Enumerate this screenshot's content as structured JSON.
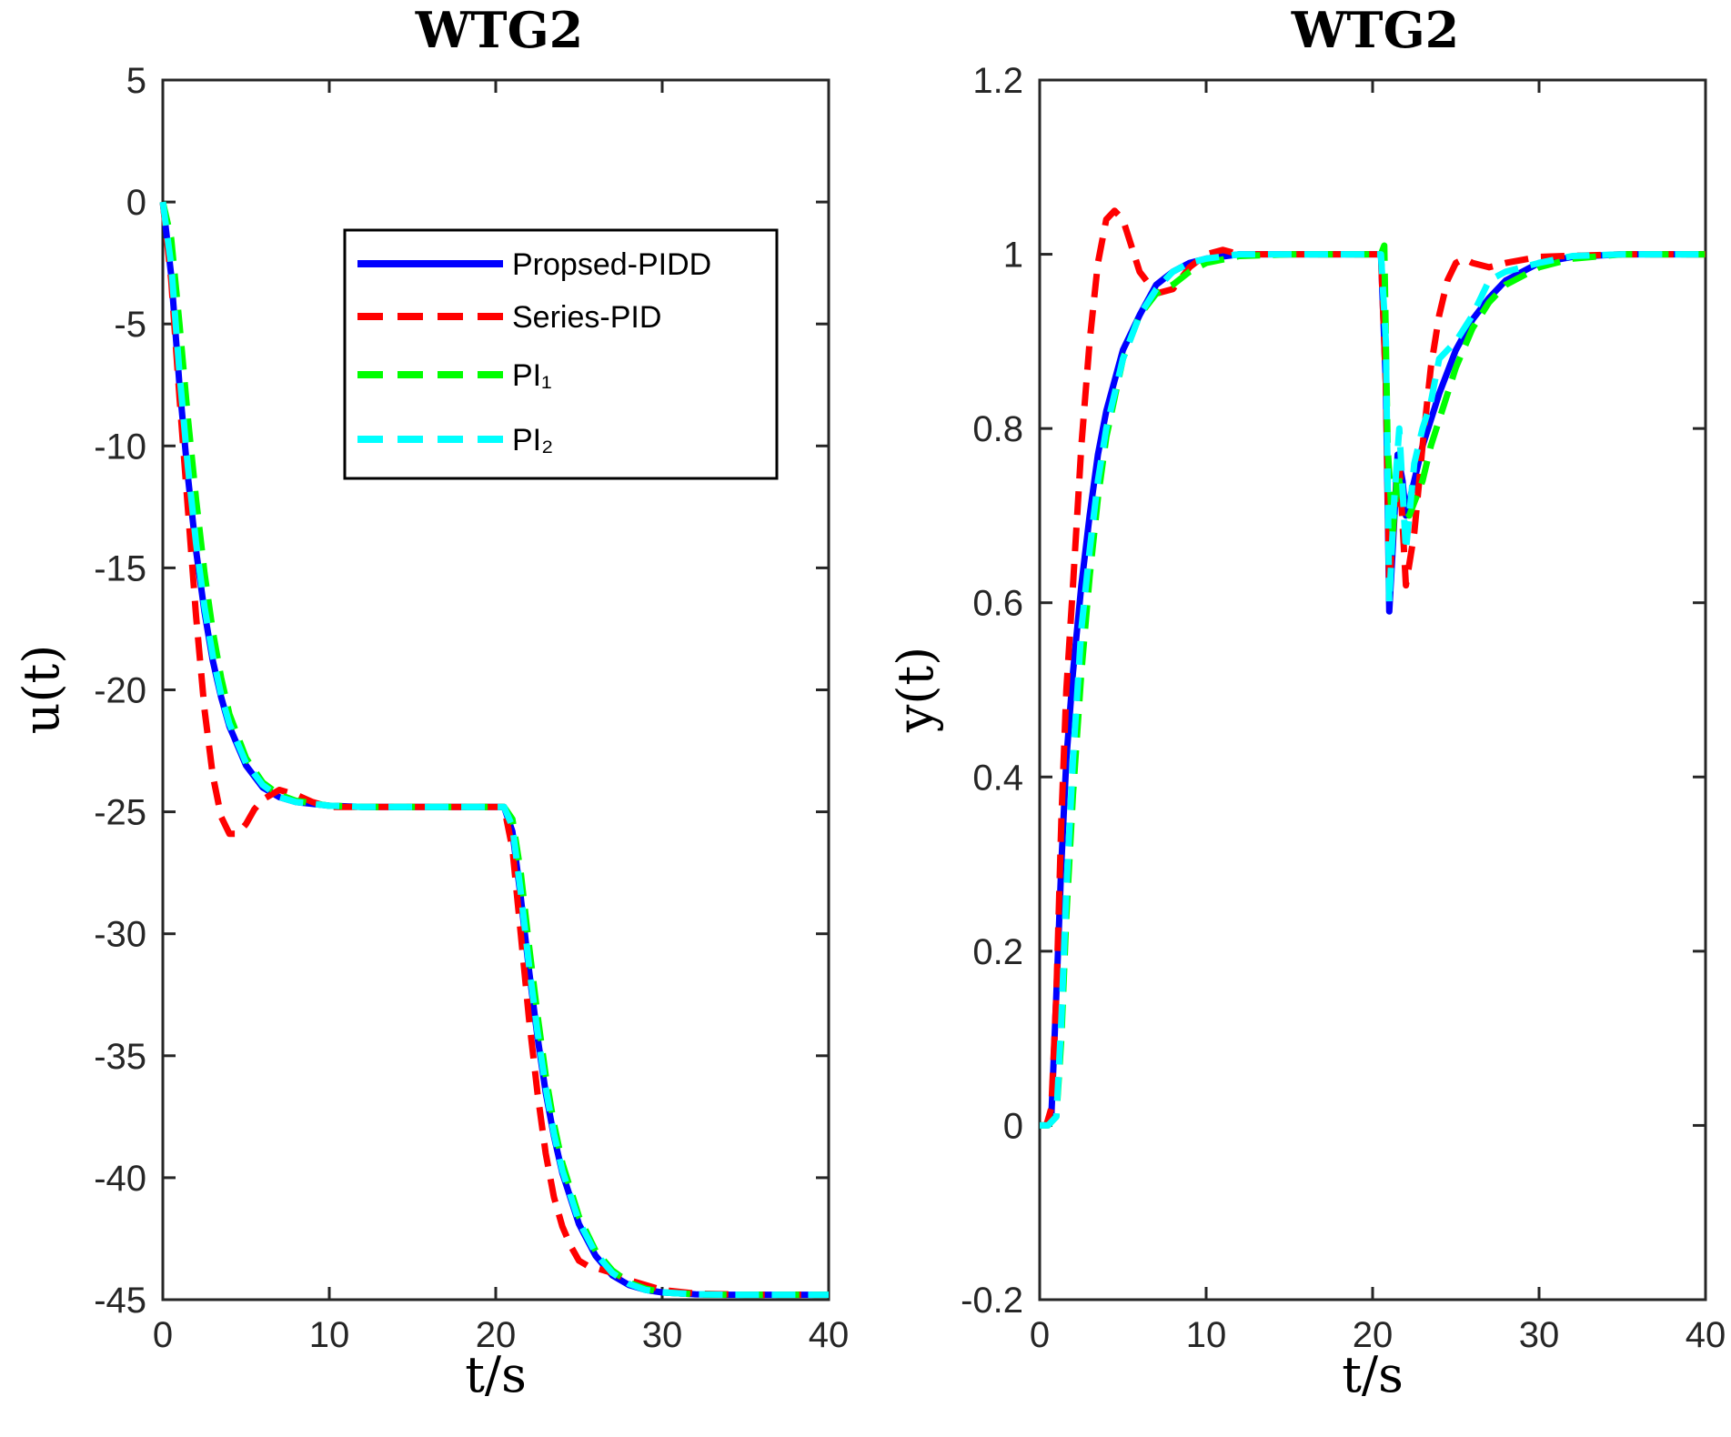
{
  "chart_data": [
    {
      "type": "line",
      "title": "WTG2",
      "xlabel": "t/s",
      "ylabel": "u(t)",
      "xlim": [
        0,
        40
      ],
      "ylim": [
        -45,
        5
      ],
      "xticks": [
        0,
        10,
        20,
        30,
        40
      ],
      "yticks": [
        5,
        0,
        -5,
        -10,
        -15,
        -20,
        -25,
        -30,
        -35,
        -40,
        -45
      ],
      "xtick_labels": [
        "0",
        "10",
        "20",
        "30",
        "40"
      ],
      "ytick_labels": [
        "5",
        "0",
        "-5",
        "-10",
        "-15",
        "-20",
        "-25",
        "-30",
        "-35",
        "-40",
        "-45"
      ],
      "grid": false,
      "legend_position": "top-right",
      "series": [
        {
          "name": "Propsed-PIDD",
          "color": "#0000ff",
          "style": "solid",
          "x": [
            0,
            0.5,
            1,
            1.5,
            2,
            2.5,
            3,
            3.5,
            4,
            5,
            6,
            7,
            8,
            10,
            12,
            15,
            18,
            20.5,
            21,
            21.5,
            22,
            22.5,
            23,
            23.5,
            24,
            25,
            26,
            27,
            28,
            29,
            30,
            32,
            34,
            36,
            38,
            40
          ],
          "y": [
            0,
            -3,
            -7.5,
            -11.2,
            -14.3,
            -16.8,
            -18.8,
            -20.3,
            -21.5,
            -23.1,
            -24,
            -24.4,
            -24.6,
            -24.75,
            -24.8,
            -24.8,
            -24.8,
            -24.8,
            -25.8,
            -28.5,
            -31.5,
            -34.2,
            -36.5,
            -38.3,
            -39.8,
            -41.9,
            -43.2,
            -44,
            -44.4,
            -44.6,
            -44.7,
            -44.78,
            -44.8,
            -44.8,
            -44.8,
            -44.8
          ]
        },
        {
          "name": "Series-PID",
          "color": "#ff0000",
          "style": "dashed",
          "x": [
            0,
            0.5,
            1,
            1.5,
            2,
            2.5,
            3,
            3.5,
            4,
            4.5,
            5,
            5.5,
            6,
            7,
            8,
            9,
            10,
            12,
            15,
            18,
            20.5,
            21,
            21.5,
            22,
            22.5,
            23,
            23.5,
            24,
            24.5,
            25,
            25.5,
            26,
            27,
            28,
            30,
            32,
            35,
            40
          ],
          "y": [
            0,
            -3.2,
            -8,
            -12.5,
            -17,
            -20.8,
            -23.5,
            -25.2,
            -25.9,
            -25.9,
            -25.5,
            -24.9,
            -24.5,
            -24.1,
            -24.3,
            -24.6,
            -24.8,
            -24.8,
            -24.8,
            -24.8,
            -24.8,
            -26.5,
            -30,
            -33.5,
            -36.5,
            -39,
            -40.8,
            -42,
            -42.8,
            -43.4,
            -43.6,
            -43.7,
            -43.9,
            -44.2,
            -44.6,
            -44.75,
            -44.8,
            -44.8
          ]
        },
        {
          "name": "PI₁",
          "color": "#00ff00",
          "style": "dashed",
          "x": [
            0,
            0.5,
            1,
            1.5,
            2,
            2.5,
            3,
            3.5,
            4,
            5,
            6,
            7,
            8,
            10,
            12,
            15,
            18,
            20.5,
            21,
            21.5,
            22,
            22.5,
            23,
            23.5,
            24,
            25,
            26,
            27,
            28,
            29,
            30,
            32,
            34,
            36,
            38,
            40
          ],
          "y": [
            0,
            -1.5,
            -5,
            -8.8,
            -12.2,
            -15.2,
            -17.6,
            -19.5,
            -21,
            -22.8,
            -23.8,
            -24.3,
            -24.55,
            -24.75,
            -24.8,
            -24.8,
            -24.8,
            -24.8,
            -25.3,
            -27.5,
            -30.5,
            -33.3,
            -35.8,
            -37.8,
            -39.4,
            -41.6,
            -43,
            -43.8,
            -44.3,
            -44.55,
            -44.7,
            -44.78,
            -44.8,
            -44.8,
            -44.8,
            -44.8
          ]
        },
        {
          "name": "PI₂",
          "color": "#00ffff",
          "style": "dashed",
          "x": [
            0,
            0.5,
            1,
            1.5,
            2,
            2.5,
            3,
            3.5,
            4,
            5,
            6,
            7,
            8,
            10,
            12,
            15,
            18,
            20.5,
            21,
            21.5,
            22,
            22.5,
            23,
            23.5,
            24,
            25,
            26,
            27,
            28,
            29,
            30,
            32,
            34,
            36,
            38,
            40
          ],
          "y": [
            0,
            -2.6,
            -7,
            -10.8,
            -14,
            -16.6,
            -18.6,
            -20.2,
            -21.4,
            -23,
            -23.9,
            -24.4,
            -24.6,
            -24.75,
            -24.8,
            -24.8,
            -24.8,
            -24.8,
            -25.6,
            -28.3,
            -31.3,
            -34,
            -36.3,
            -38.2,
            -39.7,
            -41.8,
            -43.1,
            -43.9,
            -44.35,
            -44.6,
            -44.7,
            -44.78,
            -44.8,
            -44.8,
            -44.8,
            -44.8
          ]
        }
      ]
    },
    {
      "type": "line",
      "title": "WTG2",
      "xlabel": "t/s",
      "ylabel": "y(t)",
      "xlim": [
        0,
        40
      ],
      "ylim": [
        -0.2,
        1.2
      ],
      "xticks": [
        0,
        10,
        20,
        30,
        40
      ],
      "yticks": [
        1.2,
        1,
        0.8,
        0.6,
        0.4,
        0.2,
        0,
        -0.2
      ],
      "xtick_labels": [
        "0",
        "10",
        "20",
        "30",
        "40"
      ],
      "ytick_labels": [
        "1.2",
        "1",
        "0.8",
        "0.6",
        "0.4",
        "0.2",
        "0",
        "-0.2"
      ],
      "grid": false,
      "series": [
        {
          "name": "Propsed-PIDD",
          "color": "#0000ff",
          "style": "solid",
          "x": [
            0,
            0.4,
            0.7,
            1,
            1.3,
            1.6,
            2,
            2.5,
            3,
            3.5,
            4,
            5,
            6,
            7,
            8,
            9,
            10,
            12,
            15,
            18,
            20.5,
            20.8,
            21,
            21.2,
            21.5,
            21.8,
            22,
            22.5,
            23,
            24,
            25,
            26,
            27,
            28,
            30,
            32,
            35,
            40
          ],
          "y": [
            0,
            0,
            0.01,
            0.15,
            0.3,
            0.42,
            0.52,
            0.62,
            0.7,
            0.77,
            0.82,
            0.89,
            0.93,
            0.965,
            0.98,
            0.99,
            0.995,
            1,
            1,
            1,
            1,
            0.85,
            0.59,
            0.66,
            0.77,
            0.74,
            0.7,
            0.74,
            0.78,
            0.84,
            0.89,
            0.925,
            0.95,
            0.97,
            0.99,
            0.997,
            1,
            1
          ]
        },
        {
          "name": "Series-PID",
          "color": "#ff0000",
          "style": "dashed",
          "x": [
            0,
            0.4,
            0.7,
            1,
            1.3,
            1.6,
            2,
            2.5,
            3,
            3.5,
            4,
            4.5,
            5,
            5.5,
            6,
            7,
            8,
            9,
            10,
            11,
            12,
            15,
            18,
            20.5,
            20.8,
            21,
            21.3,
            21.6,
            22,
            22.5,
            23,
            23.5,
            24,
            24.5,
            25,
            25.5,
            26,
            27,
            28,
            30,
            35,
            40
          ],
          "y": [
            0,
            0,
            0.02,
            0.15,
            0.35,
            0.5,
            0.62,
            0.78,
            0.9,
            0.99,
            1.04,
            1.05,
            1.04,
            1.01,
            0.98,
            0.955,
            0.96,
            0.985,
            1,
            1.005,
            1,
            1,
            1,
            1,
            0.85,
            0.62,
            0.7,
            0.76,
            0.62,
            0.68,
            0.78,
            0.87,
            0.93,
            0.97,
            0.99,
            0.995,
            0.99,
            0.985,
            0.99,
            0.997,
            1,
            1
          ]
        },
        {
          "name": "PI₁",
          "color": "#00ff00",
          "style": "dashed",
          "x": [
            0,
            0.5,
            1,
            1.3,
            1.6,
            2,
            2.5,
            3,
            3.5,
            4,
            5,
            6,
            7,
            8,
            9,
            10,
            12,
            15,
            18,
            20.5,
            20.7,
            20.9,
            21.2,
            21.5,
            21.8,
            22.2,
            22.6,
            23,
            23.5,
            24,
            25,
            26,
            27,
            28,
            30,
            32,
            35,
            40
          ],
          "y": [
            0,
            0,
            0.01,
            0.1,
            0.24,
            0.38,
            0.52,
            0.63,
            0.72,
            0.79,
            0.88,
            0.93,
            0.955,
            0.965,
            0.98,
            0.99,
            0.998,
            1,
            1,
            1,
            1.01,
            0.78,
            0.68,
            0.75,
            0.72,
            0.7,
            0.72,
            0.74,
            0.78,
            0.81,
            0.87,
            0.915,
            0.945,
            0.965,
            0.985,
            0.995,
            1,
            1
          ]
        },
        {
          "name": "PI₂",
          "color": "#00ffff",
          "style": "dashed",
          "x": [
            0,
            0.5,
            1,
            1.3,
            1.6,
            2,
            2.5,
            3,
            3.5,
            4,
            5,
            6,
            7,
            8,
            9,
            10,
            12,
            15,
            18,
            20.5,
            20.8,
            21,
            21.3,
            21.6,
            22,
            22.5,
            23,
            23.5,
            24,
            24.5,
            25,
            26,
            27,
            28,
            30,
            32,
            35,
            40
          ],
          "y": [
            0,
            0,
            0.01,
            0.12,
            0.27,
            0.42,
            0.57,
            0.66,
            0.74,
            0.8,
            0.88,
            0.93,
            0.96,
            0.98,
            0.99,
            0.995,
            1,
            1,
            1,
            1,
            0.9,
            0.6,
            0.72,
            0.8,
            0.66,
            0.76,
            0.8,
            0.83,
            0.88,
            0.89,
            0.9,
            0.93,
            0.97,
            0.98,
            0.99,
            0.998,
            1,
            1
          ]
        }
      ]
    }
  ]
}
